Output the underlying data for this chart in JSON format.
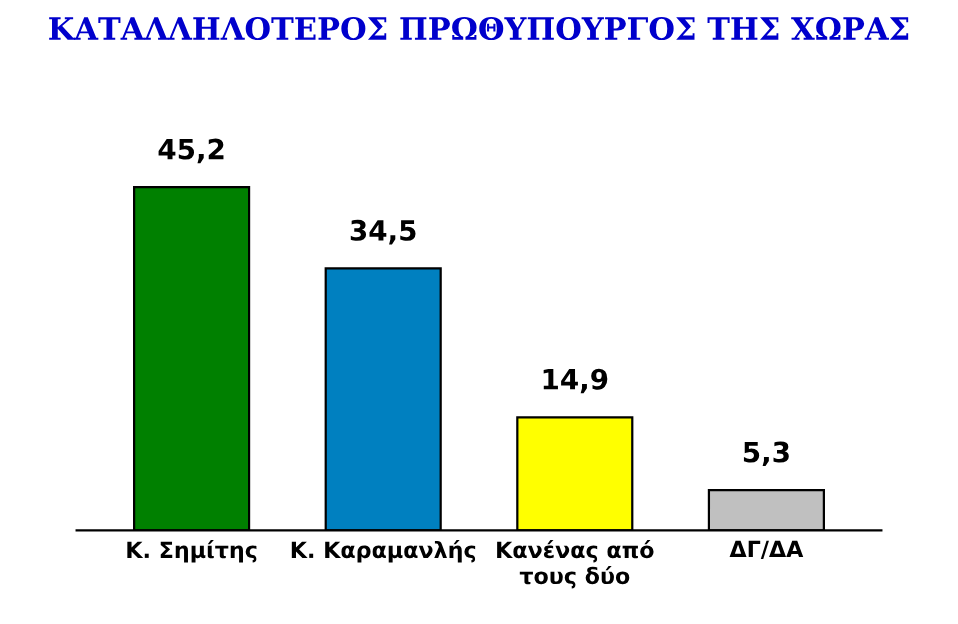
{
  "chart_data": {
    "type": "bar",
    "title": "ΚΑΤΑΛΛΗΛΟΤΕΡΟΣ ΠΡΩΘΥΠΟΥΡΓΟΣ ΤΗΣ ΧΩΡΑΣ",
    "categories": [
      "Κ. Σημίτης",
      "Κ. Καραμανλής",
      "Κανένας από\nτους δύο",
      "ΔΓ/ΔΑ"
    ],
    "values": [
      45.2,
      34.5,
      14.9,
      5.3
    ],
    "colors": [
      "#008000",
      "#0080c0",
      "#ffff00",
      "#c0c0c0"
    ],
    "value_labels": [
      "45,2",
      "34,5",
      "14,9",
      "5,3"
    ],
    "grid": false,
    "legend": false
  }
}
